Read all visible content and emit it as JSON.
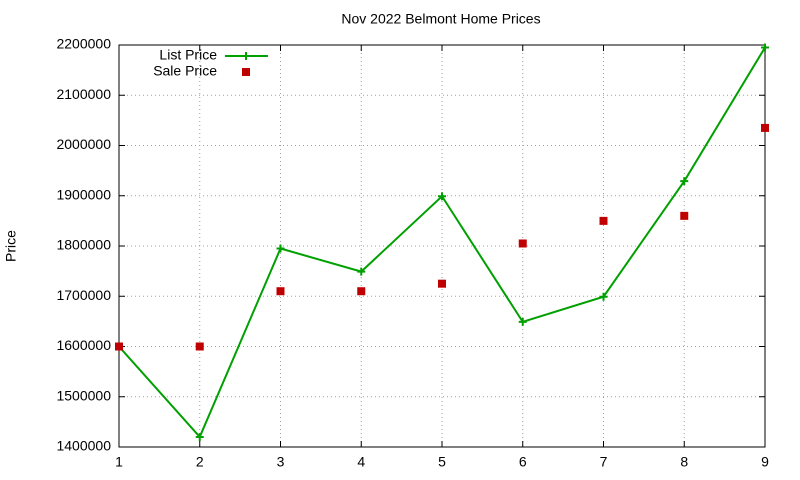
{
  "chart_data": {
    "type": "line",
    "title": "Nov 2022 Belmont Home Prices",
    "y_label": "Price",
    "x": [
      1,
      2,
      3,
      4,
      5,
      6,
      7,
      8,
      9
    ],
    "xlim": [
      1,
      9
    ],
    "xticks": [
      1,
      2,
      3,
      4,
      5,
      6,
      7,
      8,
      9
    ],
    "ylim": [
      1400000,
      2200000
    ],
    "yticks": [
      1400000,
      1500000,
      1600000,
      1700000,
      1800000,
      1900000,
      2000000,
      2100000,
      2200000
    ],
    "grid": true,
    "legend": "top-left",
    "series": [
      {
        "name": "List Price",
        "color": "#00a000",
        "line": true,
        "marker": "plus",
        "values": [
          1600000,
          1420000,
          1795000,
          1749000,
          1899000,
          1649000,
          1699000,
          1929000,
          2195000
        ]
      },
      {
        "name": "Sale Price",
        "color": "#c00000",
        "line": false,
        "marker": "square",
        "values": [
          1600000,
          1600000,
          1710000,
          1710000,
          1725000,
          1805000,
          1850000,
          1860000,
          2035000
        ]
      }
    ]
  }
}
